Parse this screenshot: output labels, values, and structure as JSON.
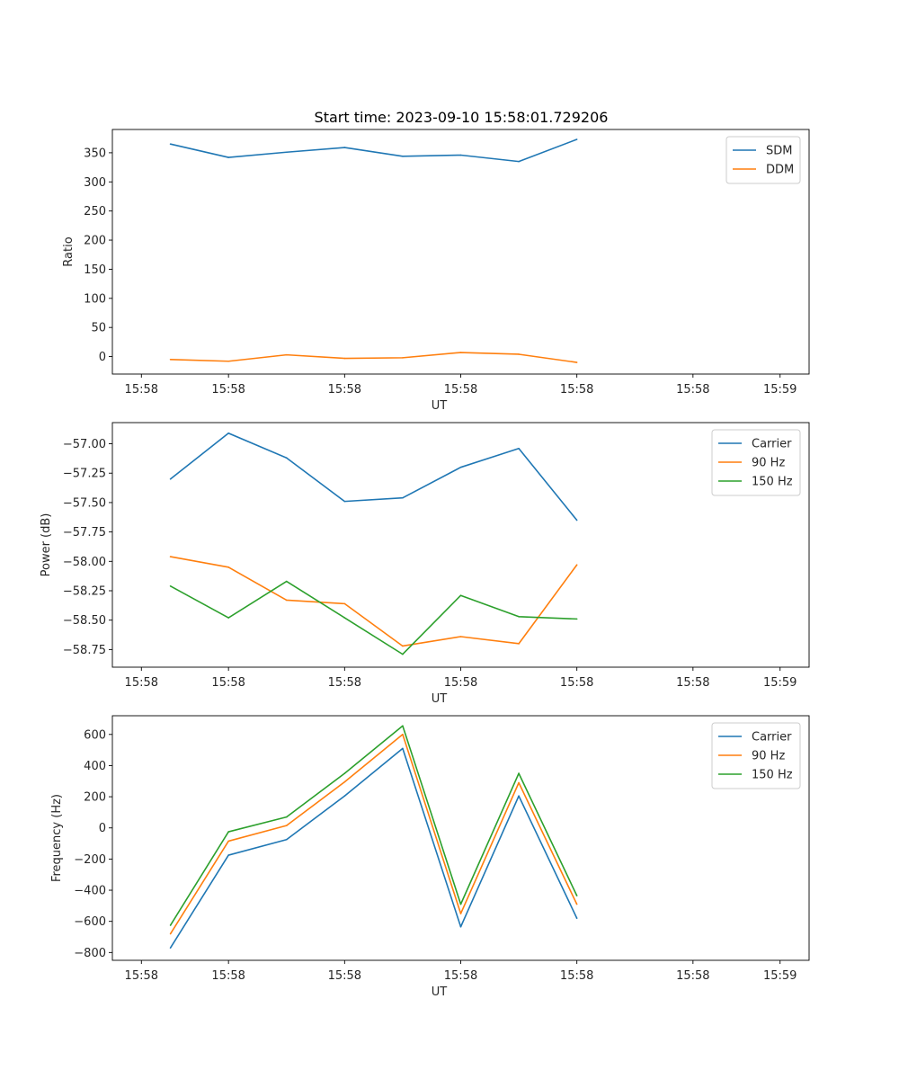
{
  "figure": {
    "title": "Start time: 2023-09-10 15:58:01.729206"
  },
  "colors": {
    "blue": "#1f77b4",
    "orange": "#ff7f0e",
    "green": "#2ca02c"
  },
  "chart_data": [
    {
      "type": "line",
      "title": "Start time: 2023-09-10 15:58:01.729206",
      "xlabel": "UT",
      "ylabel": "Ratio",
      "xlim": [
        0,
        12
      ],
      "ylim": [
        -30,
        390
      ],
      "x": [
        1,
        2,
        3,
        4,
        5,
        6,
        7,
        8
      ],
      "xticks": [
        0.5,
        2,
        4,
        6,
        8,
        10,
        11.5
      ],
      "xtick_labels": [
        "15:58",
        "15:58",
        "15:58",
        "15:58",
        "15:58",
        "15:58",
        "15:59"
      ],
      "yticks": [
        0,
        50,
        100,
        150,
        200,
        250,
        300,
        350
      ],
      "ytick_labels": [
        "0",
        "50",
        "100",
        "150",
        "200",
        "250",
        "300",
        "350"
      ],
      "legend_position": "top-right",
      "series": [
        {
          "name": "SDM",
          "color": "#1f77b4",
          "values": [
            365,
            342,
            351,
            359,
            344,
            346,
            335,
            373
          ]
        },
        {
          "name": "DDM",
          "color": "#ff7f0e",
          "values": [
            -5,
            -8,
            3,
            -3,
            -2,
            7,
            4,
            -10
          ]
        }
      ]
    },
    {
      "type": "line",
      "title": "",
      "xlabel": "UT",
      "ylabel": "Power (dB)",
      "xlim": [
        0,
        12
      ],
      "ylim": [
        -58.9,
        -56.82
      ],
      "x": [
        1,
        2,
        3,
        4,
        5,
        6,
        7,
        8
      ],
      "xticks": [
        0.5,
        2,
        4,
        6,
        8,
        10,
        11.5
      ],
      "xtick_labels": [
        "15:58",
        "15:58",
        "15:58",
        "15:58",
        "15:58",
        "15:58",
        "15:59"
      ],
      "yticks": [
        -58.75,
        -58.5,
        -58.25,
        -58.0,
        -57.75,
        -57.5,
        -57.25,
        -57.0
      ],
      "ytick_labels": [
        "−58.75",
        "−58.50",
        "−58.25",
        "−58.00",
        "−57.75",
        "−57.50",
        "−57.25",
        "−57.00"
      ],
      "legend_position": "top-right",
      "series": [
        {
          "name": "Carrier",
          "color": "#1f77b4",
          "values": [
            -57.3,
            -56.91,
            -57.12,
            -57.49,
            -57.46,
            -57.2,
            -57.04,
            -57.65
          ]
        },
        {
          "name": "90 Hz",
          "color": "#ff7f0e",
          "values": [
            -57.96,
            -58.05,
            -58.33,
            -58.36,
            -58.72,
            -58.64,
            -58.7,
            -58.03
          ]
        },
        {
          "name": "150 Hz",
          "color": "#2ca02c",
          "values": [
            -58.21,
            -58.48,
            -58.17,
            -58.48,
            -58.79,
            -58.29,
            -58.47,
            -58.49
          ]
        }
      ]
    },
    {
      "type": "line",
      "title": "",
      "xlabel": "UT",
      "ylabel": "Frequency (Hz)",
      "xlim": [
        0,
        12
      ],
      "ylim": [
        -850,
        720
      ],
      "x": [
        1,
        2,
        3,
        4,
        5,
        6,
        7,
        8
      ],
      "xticks": [
        0.5,
        2,
        4,
        6,
        8,
        10,
        11.5
      ],
      "xtick_labels": [
        "15:58",
        "15:58",
        "15:58",
        "15:58",
        "15:58",
        "15:58",
        "15:59"
      ],
      "yticks": [
        -800,
        -600,
        -400,
        -200,
        0,
        200,
        400,
        600
      ],
      "ytick_labels": [
        "−800",
        "−600",
        "−400",
        "−200",
        "0",
        "200",
        "400",
        "600"
      ],
      "legend_position": "top-right",
      "series": [
        {
          "name": "Carrier",
          "color": "#1f77b4",
          "values": [
            -770,
            -175,
            -75,
            205,
            510,
            -635,
            205,
            -580
          ]
        },
        {
          "name": "90 Hz",
          "color": "#ff7f0e",
          "values": [
            -680,
            -85,
            15,
            295,
            600,
            -550,
            290,
            -490
          ]
        },
        {
          "name": "150 Hz",
          "color": "#2ca02c",
          "values": [
            -625,
            -25,
            70,
            350,
            655,
            -490,
            350,
            -435
          ]
        }
      ]
    }
  ]
}
